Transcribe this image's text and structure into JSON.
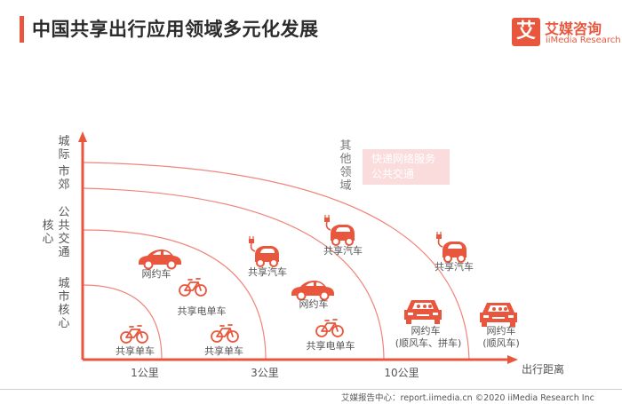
{
  "header": {
    "title": "中国共享出行应用领域多元化发展"
  },
  "logo": {
    "mark": "艾",
    "name": "艾媒咨询",
    "subtitle": "iiMedia Research"
  },
  "y_axis_zones": [
    {
      "label": "城际",
      "key": "intercity"
    },
    {
      "label": "市郊",
      "key": "suburb"
    },
    {
      "label": "公共交通",
      "key": "public-transport"
    },
    {
      "label": "核心",
      "key": "core"
    },
    {
      "label": "城市核心",
      "key": "city-core"
    }
  ],
  "x_axis": {
    "title": "出行距离",
    "ticks": [
      "1公里",
      "3公里",
      "10公里"
    ]
  },
  "other_field": {
    "label": "其他领域",
    "items": [
      "快递网络服务",
      "公共交通"
    ]
  },
  "vehicles": [
    {
      "label": "共享单车",
      "icon": "bicycle-icon"
    },
    {
      "label": "共享单车",
      "icon": "bicycle-icon"
    },
    {
      "label": "共享电单车",
      "icon": "bicycle-icon"
    },
    {
      "label": "共享电单车",
      "icon": "bicycle-icon"
    },
    {
      "label": "网约车",
      "icon": "sedan-icon"
    },
    {
      "label": "网约车",
      "icon": "sedan-icon"
    },
    {
      "label": "共享汽车",
      "icon": "electric-car-icon"
    },
    {
      "label": "共享汽车",
      "icon": "electric-car-icon"
    },
    {
      "label": "共享汽车",
      "icon": "electric-car-icon"
    },
    {
      "label": "网约车",
      "sub": "(顺风车、拼车)",
      "icon": "carpool-car-icon"
    },
    {
      "label": "网约车",
      "sub": "(顺风车)",
      "icon": "carpool-car-icon"
    }
  ],
  "footer": {
    "text": "艾媒报告中心：report.iimedia.cn  ©2020  iiMedia Research  Inc"
  },
  "colors": {
    "accent": "#e8573d",
    "note_bg": "#fbdcdc"
  }
}
